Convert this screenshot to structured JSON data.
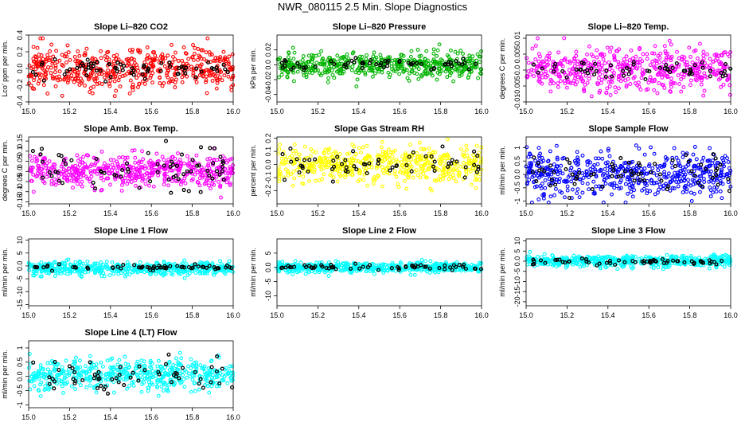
{
  "title": "NWR_080115  2.5 Min. Slope Diagnostics",
  "colors": {
    "red": "#ff0000",
    "green": "#00b400",
    "magenta": "#ff00ff",
    "yellow": "#ffff00",
    "blue": "#0000ff",
    "cyan": "#00ffff",
    "black": "#000000"
  },
  "chart_data": [
    {
      "type": "scatter",
      "title": "Slope Li–820 CO2",
      "ylabel": "Lco’ ppm per min.",
      "color": "#ff0000",
      "xlim": [
        15.0,
        16.0
      ],
      "ylim": [
        -0.4,
        0.4
      ],
      "xticks": [
        15.0,
        15.2,
        15.4,
        15.6,
        15.8,
        16.0
      ],
      "yticks": [
        -0.4,
        -0.2,
        0.0,
        0.2,
        0.4
      ],
      "spread": 0.13,
      "range": [
        -0.36,
        0.36
      ],
      "offset": 0.0,
      "n": 520,
      "nb": 70,
      "bspread": 0.07,
      "seed": 11
    },
    {
      "type": "scatter",
      "title": "Slope Li–820 Pressure",
      "ylabel": "kPa per min.",
      "color": "#00b400",
      "xlim": [
        15.0,
        16.0
      ],
      "ylim": [
        -0.05,
        0.04
      ],
      "xticks": [
        15.0,
        15.2,
        15.4,
        15.6,
        15.8,
        16.0
      ],
      "yticks": [
        -0.04,
        -0.02,
        0.0,
        0.02
      ],
      "spread": 0.008,
      "range": [
        -0.045,
        0.035
      ],
      "offset": 0.0,
      "n": 520,
      "nb": 60,
      "bspread": 0.004,
      "seed": 23
    },
    {
      "type": "scatter",
      "title": "Slope Li–820 Temp.",
      "ylabel": "degrees C per min.",
      "color": "#ff00ff",
      "xlim": [
        15.0,
        16.0
      ],
      "ylim": [
        -0.01,
        0.011
      ],
      "xticks": [
        15.0,
        15.2,
        15.4,
        15.6,
        15.8,
        16.0
      ],
      "yticks": [
        -0.01,
        -0.005,
        0.0,
        0.005,
        0.01
      ],
      "spread": 0.0033,
      "range": [
        -0.0098,
        0.0105
      ],
      "offset": 0.0,
      "n": 520,
      "nb": 60,
      "bspread": 0.0015,
      "seed": 37
    },
    {
      "type": "scatter",
      "title": "Slope Amb. Box Temp.",
      "ylabel": "degrees C per min.",
      "color": "#ff00ff",
      "xlim": [
        15.0,
        16.0
      ],
      "ylim": [
        -0.16,
        0.17
      ],
      "xticks": [
        15.0,
        15.2,
        15.4,
        15.6,
        15.8,
        16.0
      ],
      "yticks": [
        -0.15,
        -0.1,
        -0.05,
        0.0,
        0.05,
        0.1,
        0.15
      ],
      "spread": 0.04,
      "range": [
        -0.15,
        0.15
      ],
      "offset": 0.0,
      "n": 520,
      "nb": 70,
      "bspread": 0.05,
      "seed": 41
    },
    {
      "type": "scatter",
      "title": "Slope Gas Stream RH",
      "ylabel": "percent per min.",
      "color": "#ffff00",
      "xlim": [
        15.0,
        16.0
      ],
      "ylim": [
        -0.3,
        0.21
      ],
      "xticks": [
        15.0,
        15.2,
        15.4,
        15.6,
        15.8,
        16.0
      ],
      "yticks": [
        -0.2,
        -0.1,
        0.0,
        0.1,
        0.2
      ],
      "spread": 0.07,
      "range": [
        -0.28,
        0.2
      ],
      "offset": 0.0,
      "n": 520,
      "nb": 60,
      "bspread": 0.05,
      "seed": 53
    },
    {
      "type": "scatter",
      "title": "Slope Sample Flow",
      "ylabel": "ml/min per min.",
      "color": "#0000ff",
      "xlim": [
        15.0,
        16.0
      ],
      "ylim": [
        -1.1,
        1.4
      ],
      "xticks": [
        15.0,
        15.2,
        15.4,
        15.6,
        15.8,
        16.0
      ],
      "yticks": [
        -1.0,
        -0.5,
        0.0,
        0.5,
        1.0
      ],
      "spread": 0.38,
      "range": [
        -1.05,
        1.3
      ],
      "offset": 0.0,
      "n": 520,
      "nb": 70,
      "bspread": 0.35,
      "seed": 67
    },
    {
      "type": "scatter",
      "title": "Slope Line 1 Flow",
      "ylabel": "ml/min per min.",
      "color": "#00ffff",
      "xlim": [
        15.0,
        16.0
      ],
      "ylim": [
        -15.5,
        10.5
      ],
      "xticks": [
        15.0,
        15.2,
        15.4,
        15.6,
        15.8,
        16.0
      ],
      "yticks": [
        -15,
        -10,
        -5,
        0,
        5,
        10
      ],
      "spread": 1.2,
      "range": [
        -6,
        7
      ],
      "offset": -1.0,
      "n": 520,
      "nb": 60,
      "bspread": 0.5,
      "seed": 71
    },
    {
      "type": "scatter",
      "title": "Slope Line 2 Flow",
      "ylabel": "ml/min per min.",
      "color": "#00ffff",
      "xlim": [
        15.0,
        16.0
      ],
      "ylim": [
        -13.5,
        10.0
      ],
      "xticks": [
        15.0,
        15.2,
        15.4,
        15.6,
        15.8,
        16.0
      ],
      "yticks": [
        -10,
        -5,
        0,
        5
      ],
      "spread": 0.9,
      "range": [
        -5,
        9
      ],
      "offset": 0.0,
      "n": 520,
      "nb": 60,
      "bspread": 0.5,
      "seed": 83
    },
    {
      "type": "scatter",
      "title": "Slope Line 3 Flow",
      "ylabel": "ml/min per min.",
      "color": "#00ffff",
      "xlim": [
        15.0,
        16.0
      ],
      "ylim": [
        -22,
        11
      ],
      "xticks": [
        15.0,
        15.2,
        15.4,
        15.6,
        15.8,
        16.0
      ],
      "yticks": [
        -20,
        -15,
        -10,
        -5,
        0,
        5,
        10
      ],
      "spread": 1.5,
      "range": [
        -10,
        10
      ],
      "offset": 0.0,
      "n": 520,
      "nb": 60,
      "bspread": 0.8,
      "seed": 97
    },
    {
      "type": "scatter",
      "title": "Slope Line 4 (LT) Flow",
      "ylabel": "ml/min per min.",
      "color": "#00ffff",
      "xlim": [
        15.0,
        16.0
      ],
      "ylim": [
        -1.1,
        1.25
      ],
      "xticks": [
        15.0,
        15.2,
        15.4,
        15.6,
        15.8,
        16.0
      ],
      "yticks": [
        -1.0,
        -0.5,
        0.0,
        0.5,
        1.0
      ],
      "spread": 0.28,
      "range": [
        -1.0,
        1.15
      ],
      "offset": 0.05,
      "n": 520,
      "nb": 60,
      "bspread": 0.25,
      "seed": 103
    }
  ]
}
